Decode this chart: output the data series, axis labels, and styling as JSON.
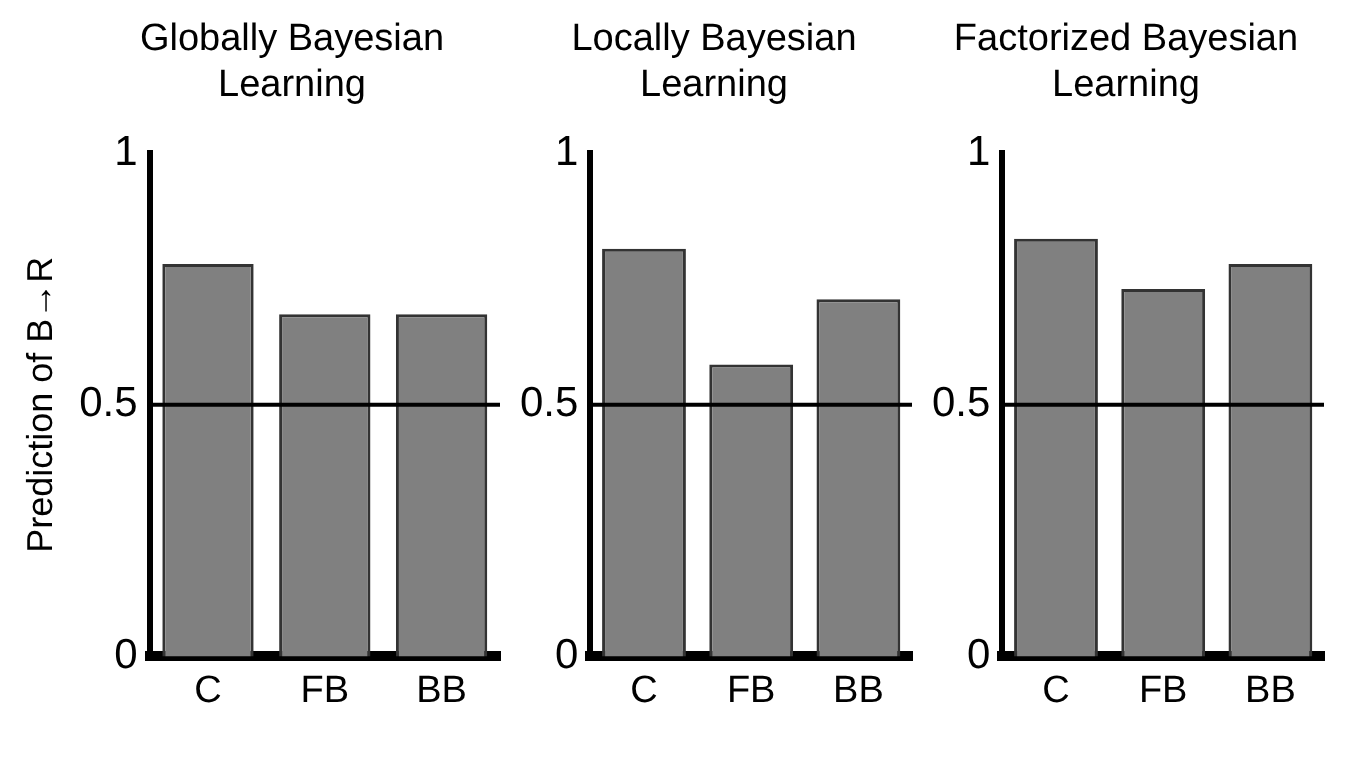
{
  "chart_data": [
    {
      "type": "bar",
      "title": "Globally Bayesian Learning",
      "ylabel": "Prediction of B→R",
      "categories": [
        "C",
        "FB",
        "BB"
      ],
      "values": [
        0.78,
        0.68,
        0.68
      ],
      "color": "#808080",
      "ylim": [
        0,
        1
      ],
      "yticks": [
        0,
        0.5,
        1
      ],
      "grid": false,
      "legend": false,
      "ref_lines": [
        {
          "axis": "y",
          "value": 0.5,
          "color": "#000000"
        }
      ]
    },
    {
      "type": "bar",
      "title": "Locally Bayesian Learning",
      "categories": [
        "C",
        "FB",
        "BB"
      ],
      "values": [
        0.81,
        0.58,
        0.71
      ],
      "color": "#808080",
      "ylim": [
        0,
        1
      ],
      "yticks": [
        0,
        0.5,
        1
      ],
      "grid": false,
      "legend": false,
      "ref_lines": [
        {
          "axis": "y",
          "value": 0.5,
          "color": "#000000"
        }
      ]
    },
    {
      "type": "bar",
      "title": "Factorized Bayesian Learning",
      "categories": [
        "C",
        "FB",
        "BB"
      ],
      "values": [
        0.83,
        0.73,
        0.78
      ],
      "color": "#808080",
      "ylim": [
        0,
        1
      ],
      "yticks": [
        0,
        0.5,
        1
      ],
      "grid": false,
      "legend": false,
      "ref_lines": [
        {
          "axis": "y",
          "value": 0.5,
          "color": "#000000"
        }
      ]
    }
  ]
}
